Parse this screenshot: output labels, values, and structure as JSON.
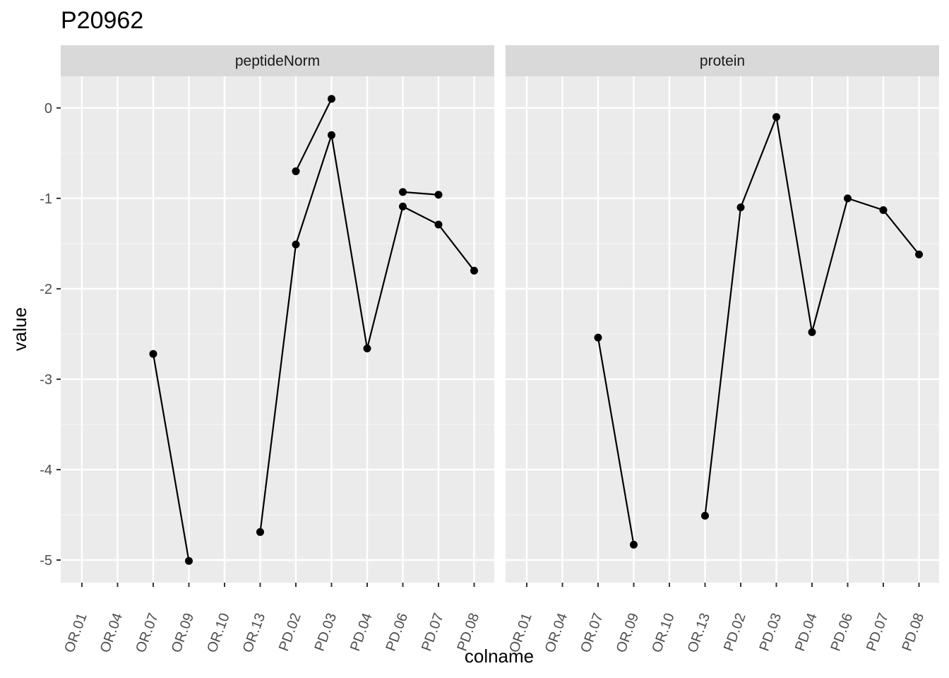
{
  "chart_data": {
    "type": "line",
    "title": "P20962",
    "xlabel": "colname",
    "ylabel": "value",
    "ylim": [
      -5.25,
      0.35
    ],
    "yticks": [
      0,
      -1,
      -2,
      -3,
      -4,
      -5
    ],
    "yticklabels": [
      "0",
      "-1",
      "-2",
      "-3",
      "-4",
      "-5"
    ],
    "grid": true,
    "categories": [
      "OR.01",
      "OR.04",
      "OR.07",
      "OR.09",
      "OR.10",
      "OR.13",
      "PD.02",
      "PD.03",
      "PD.04",
      "PD.06",
      "PD.07",
      "PD.08"
    ],
    "facets": [
      {
        "label": "peptideNorm",
        "lines": [
          {
            "x": [
              "OR.07",
              "OR.09"
            ],
            "y": [
              -2.72,
              -5.01
            ]
          },
          {
            "x": [
              "OR.13",
              "PD.02",
              "PD.03",
              "PD.04",
              "PD.06",
              "PD.07",
              "PD.08"
            ],
            "y": [
              -4.69,
              -1.51,
              -0.3,
              -2.66,
              -1.09,
              -1.29,
              -1.8
            ]
          },
          {
            "x": [
              "PD.02",
              "PD.03"
            ],
            "y": [
              -0.7,
              0.1
            ]
          },
          {
            "x": [
              "PD.06",
              "PD.07"
            ],
            "y": [
              -0.93,
              -0.96
            ]
          }
        ]
      },
      {
        "label": "protein",
        "lines": [
          {
            "x": [
              "OR.07",
              "OR.09"
            ],
            "y": [
              -2.54,
              -4.83
            ]
          },
          {
            "x": [
              "OR.13",
              "PD.02",
              "PD.03",
              "PD.04",
              "PD.06",
              "PD.07",
              "PD.08"
            ],
            "y": [
              -4.51,
              -1.1,
              -0.1,
              -2.48,
              -1.0,
              -1.13,
              -1.62
            ]
          }
        ]
      }
    ]
  }
}
